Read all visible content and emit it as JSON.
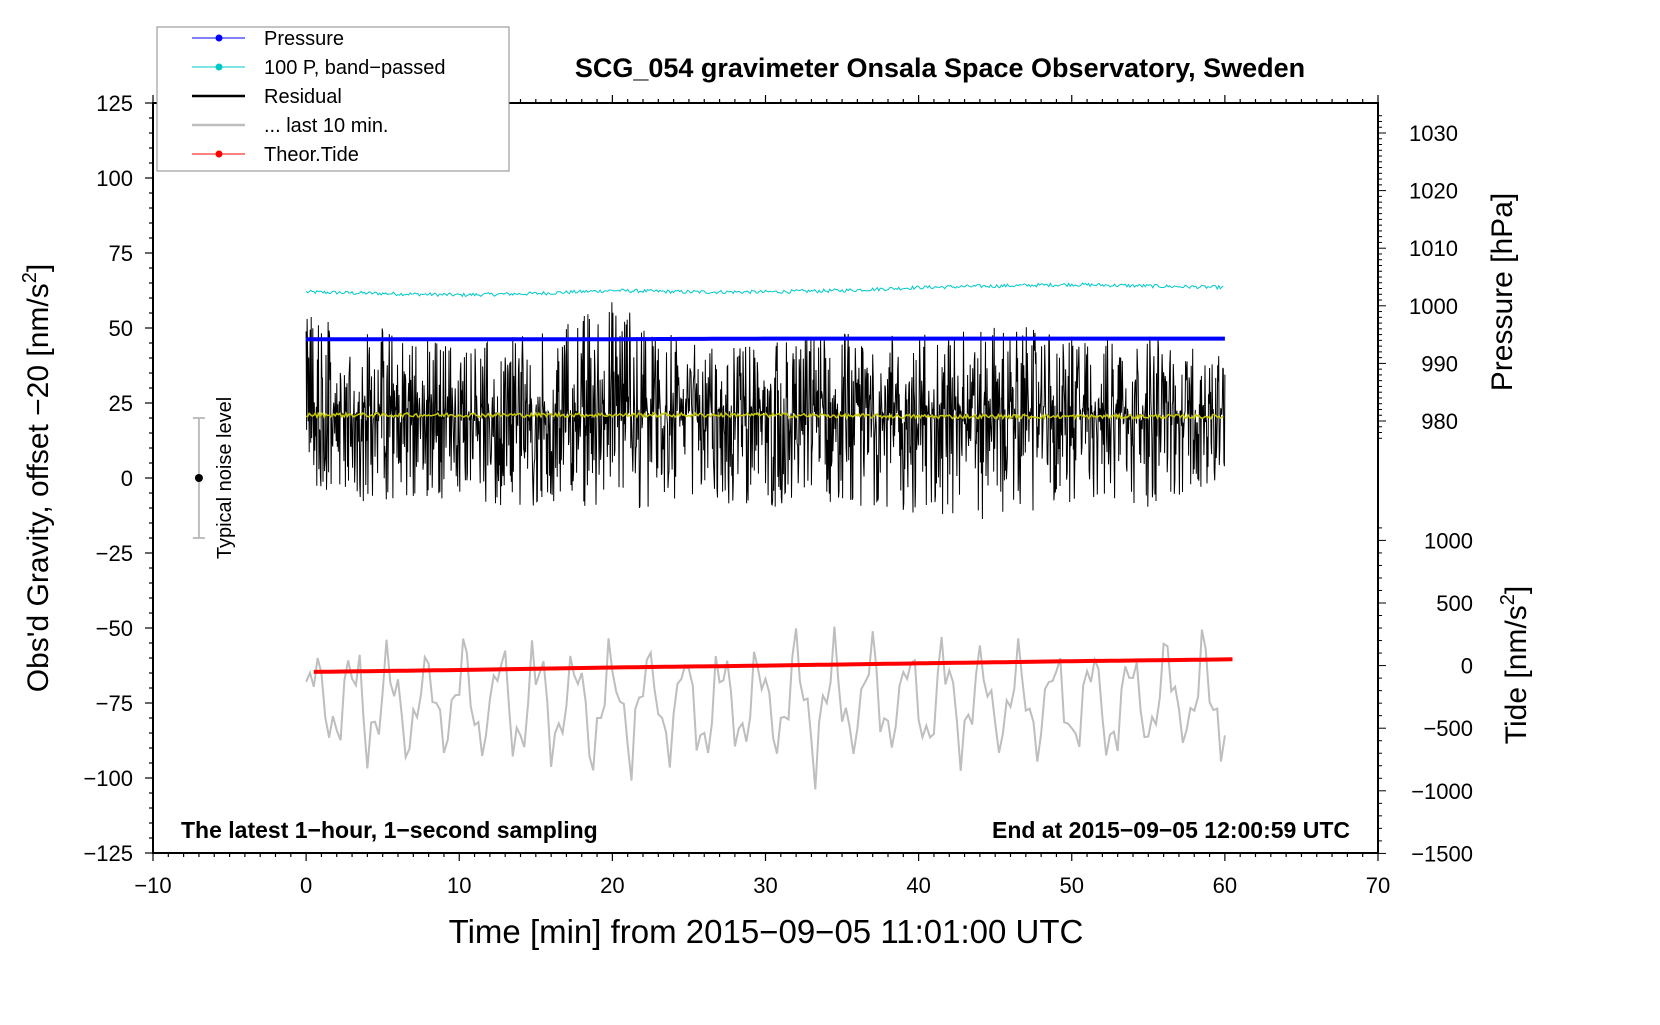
{
  "chart_data": {
    "type": "line",
    "title": "SCG_054 gravimeter Onsala Space Observatory, Sweden",
    "xlabel": "Time [min] from 2015−09−05 11:01:00 UTC",
    "ylabel_left": "Obs'd Gravity, offset −20 [nm/s",
    "ylabel_left_sup": "2",
    "ylabel_left_end": "]",
    "ylabel_right_pressure": "Pressure [hPa]",
    "ylabel_right_tide": "Tide [nm/s",
    "ylabel_right_tide_sup": "2",
    "ylabel_right_tide_end": "]",
    "xlim": [
      -10,
      70
    ],
    "ylim_left": [
      -125,
      125
    ],
    "x_ticks": [
      "−10",
      "0",
      "10",
      "20",
      "30",
      "40",
      "50",
      "60",
      "70"
    ],
    "x_tick_values": [
      -10,
      0,
      10,
      20,
      30,
      40,
      50,
      60,
      70
    ],
    "y_ticks_left": [
      "125",
      "100",
      "75",
      "50",
      "25",
      "0",
      "−25",
      "−50",
      "−75",
      "−100",
      "−125"
    ],
    "y_tick_values_left": [
      125,
      100,
      75,
      50,
      25,
      0,
      -25,
      -50,
      -75,
      -100,
      -125
    ],
    "pressure_ticks": [
      "1030",
      "1020",
      "1010",
      "1000",
      "990",
      "980"
    ],
    "pressure_tick_values": [
      1030,
      1020,
      1010,
      1000,
      990,
      980
    ],
    "tide_ticks": [
      "1000",
      "500",
      "0",
      "−500",
      "−1000",
      "−1500"
    ],
    "tide_tick_values": [
      1000,
      500,
      0,
      -500,
      -1000,
      -1500
    ],
    "annotation_left": "The latest 1−hour, 1−second sampling",
    "annotation_right": "End at 2015−09−05 12:00:59 UTC",
    "noise_label": "Typical noise level",
    "noise_bar": {
      "x": -7,
      "center": 0,
      "low": -20,
      "high": 20
    },
    "legend_placement": "top-left",
    "legend": [
      {
        "label": "Pressure",
        "color": "#0000ff",
        "marker": true
      },
      {
        "label": "100 P, band−passed",
        "color": "#00c8c8",
        "marker": true
      },
      {
        "label": "Residual",
        "color": "#000000",
        "marker": false
      },
      {
        "label": "... last 10 min.",
        "color": "#bebebe",
        "marker": false
      },
      {
        "label": "Theor.Tide",
        "color": "#ff0000",
        "marker": true
      }
    ],
    "series": {
      "pressure_hPa": {
        "x": [
          0,
          10,
          20,
          30,
          40,
          50,
          60
        ],
        "values": [
          994.2,
          994.2,
          994.2,
          994.3,
          994.3,
          994.3,
          994.3
        ],
        "color": "#0000ff"
      },
      "bandpassed_left_units": {
        "x": [
          0,
          5,
          10,
          15,
          20,
          25,
          30,
          35,
          40,
          45,
          50,
          55,
          60
        ],
        "values": [
          62,
          61.5,
          61,
          61.5,
          62.5,
          62,
          62,
          62.5,
          63.5,
          64,
          64.5,
          64,
          63.5
        ],
        "color": "#00c8c8"
      },
      "residual_mean_left_units": {
        "x": [
          0,
          10,
          20,
          30,
          40,
          50,
          60
        ],
        "values": [
          21,
          21,
          21,
          21,
          20.5,
          20.5,
          20.5
        ],
        "color": "#c8c800"
      },
      "residual_envelope_left_units": {
        "x": [
          0,
          5,
          10,
          15,
          20,
          25,
          30,
          35,
          40,
          45,
          50,
          55,
          60
        ],
        "min": [
          -5,
          -10,
          -8,
          -10,
          -12,
          -8,
          -10,
          -8,
          -13,
          -14,
          -8,
          -10,
          -2
        ],
        "max": [
          55,
          50,
          45,
          48,
          60,
          45,
          45,
          50,
          50,
          52,
          48,
          48,
          40
        ],
        "color": "#000000"
      },
      "last10min_left_units": {
        "center": -75,
        "min": -104,
        "max": -46,
        "color": "#bebebe"
      },
      "tide_nm_s2": {
        "x": [
          0.5,
          10,
          20,
          30,
          40,
          50,
          60.5
        ],
        "values": [
          -50,
          -35,
          -15,
          0,
          18,
          35,
          50
        ],
        "color": "#ff0000"
      }
    }
  }
}
